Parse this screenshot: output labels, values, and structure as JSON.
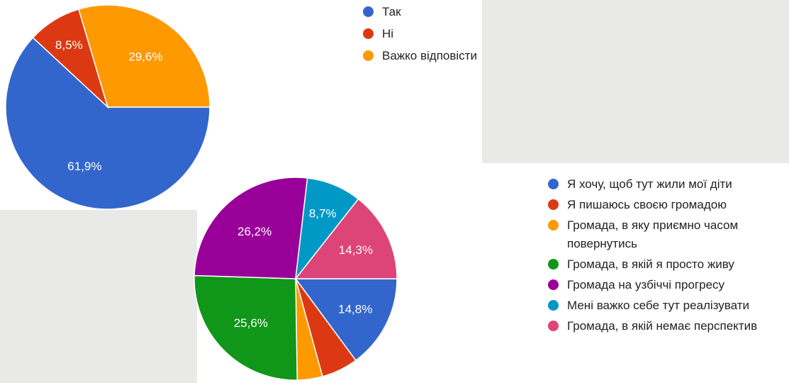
{
  "chart_data": [
    {
      "type": "pie",
      "title": "",
      "categories": [
        "Так",
        "Ні",
        "Важко відповісти"
      ],
      "values": [
        61.9,
        8.5,
        29.6
      ],
      "data_labels": [
        "61,9%",
        "8,5%",
        "29,6%"
      ],
      "colors": [
        "#3366cc",
        "#dc3912",
        "#ff9900"
      ],
      "legend_position": "right",
      "legend": [
        {
          "label": "Так",
          "color": "#3366cc"
        },
        {
          "label": "Ні",
          "color": "#dc3912"
        },
        {
          "label": "Важко відповісти",
          "color": "#ff9900"
        }
      ]
    },
    {
      "type": "pie",
      "title": "",
      "categories": [
        "Я хочу, щоб тут жили мої діти",
        "Я пишаюсь своєю громадою",
        "Громада, в яку приємно часом повернутись",
        "Громада, в якій я просто живу",
        "Громада на узбіччі прогресу",
        "Мені важко себе тут реалізувати",
        "Громада, в якій немає перспектив"
      ],
      "values": [
        14.8,
        5.8,
        4.0,
        25.6,
        26.2,
        8.7,
        14.3
      ],
      "data_labels": [
        "14,8%",
        "",
        "",
        "25,6%",
        "26,2%",
        "8,7%",
        "14,3%"
      ],
      "colors": [
        "#3366cc",
        "#dc3912",
        "#ff9900",
        "#109618",
        "#990099",
        "#0099c6",
        "#dd4477"
      ],
      "legend_position": "right",
      "legend": [
        {
          "label": "Я хочу, щоб тут жили мої діти",
          "color": "#3366cc"
        },
        {
          "label": "Я пишаюсь своєю громадою",
          "color": "#dc3912"
        },
        {
          "label": "Громада, в яку приємно часом повернутись",
          "color": "#ff9900"
        },
        {
          "label": "Громада, в якій я просто живу",
          "color": "#109618"
        },
        {
          "label": "Громада на узбіччі прогресу",
          "color": "#990099"
        },
        {
          "label": "Мені важко себе тут реалізувати",
          "color": "#0099c6"
        },
        {
          "label": "Громада, в якій немає перспектив",
          "color": "#dd4477"
        }
      ]
    }
  ]
}
